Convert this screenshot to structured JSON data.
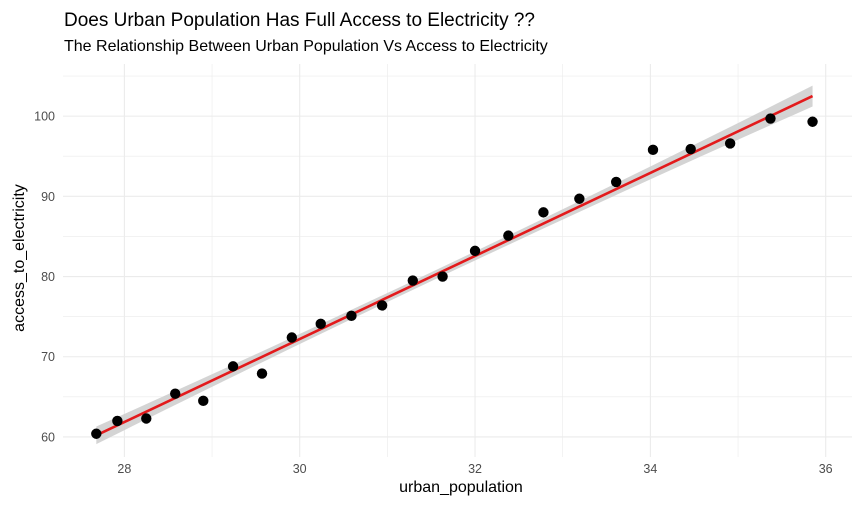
{
  "chart_data": {
    "type": "scatter",
    "title": "Does Urban Population Has Full Access to Electricity ??",
    "subtitle": "The Relationship Between Urban Population Vs Access to Electricity",
    "xlabel": "urban_population",
    "ylabel": "access_to_electricity",
    "xlim": [
      27.3,
      36.3
    ],
    "ylim": [
      57.5,
      106.5
    ],
    "xticks": [
      28,
      30,
      32,
      34,
      36
    ],
    "yticks": [
      60,
      70,
      80,
      90,
      100
    ],
    "grid": true,
    "points": {
      "x": [
        27.68,
        27.92,
        28.25,
        28.58,
        28.9,
        29.24,
        29.57,
        29.91,
        30.24,
        30.59,
        30.94,
        31.29,
        31.63,
        32.0,
        32.38,
        32.78,
        33.19,
        33.61,
        34.03,
        34.46,
        34.91,
        35.37,
        35.85
      ],
      "y": [
        60.4,
        62.0,
        62.3,
        65.4,
        64.5,
        68.8,
        67.9,
        72.4,
        74.1,
        75.1,
        76.4,
        79.5,
        80.0,
        83.2,
        85.1,
        88.0,
        89.7,
        91.8,
        95.8,
        95.9,
        96.6,
        99.7,
        99.3
      ]
    },
    "fit_line": {
      "x": [
        27.68,
        35.85
      ],
      "y": [
        60.2,
        102.5
      ]
    },
    "colors": {
      "points": "#000000",
      "fit_line": "#e31a1c",
      "confidence_band": "#cccccc",
      "grid": "#ebebeb"
    }
  }
}
